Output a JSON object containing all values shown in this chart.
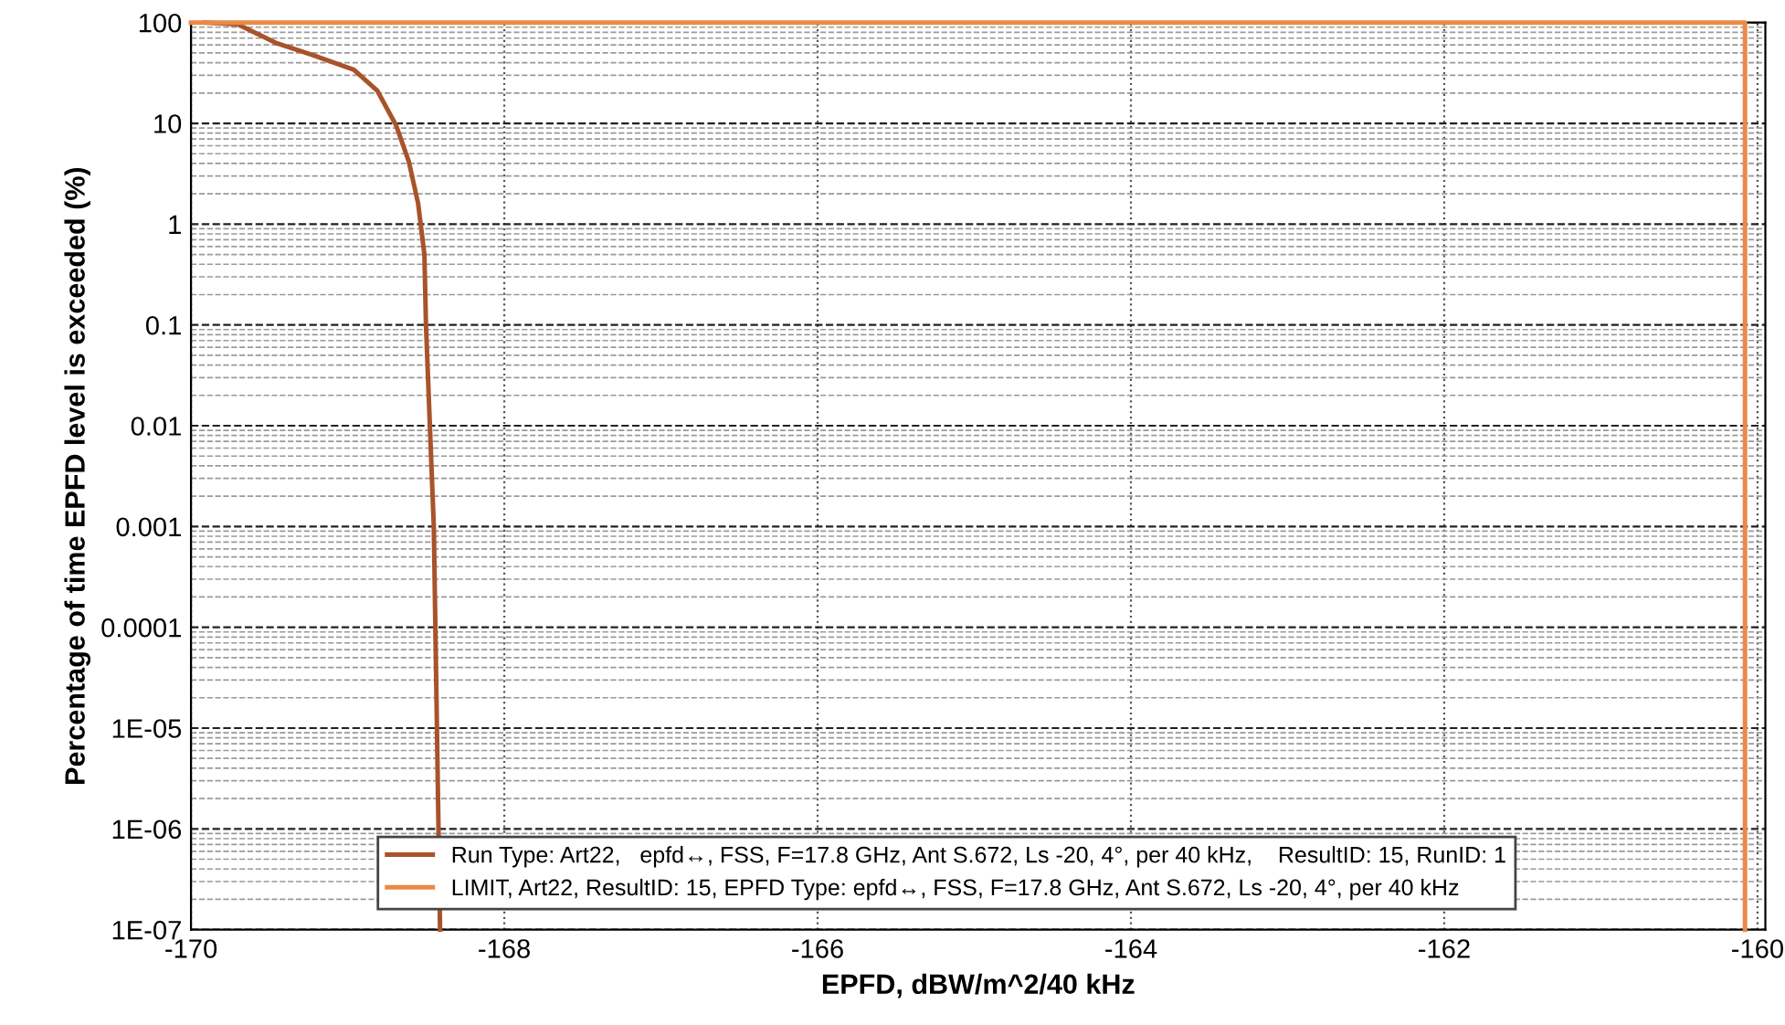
{
  "chart_data": {
    "type": "line",
    "xlabel": "EPFD, dBW/m^2/40 kHz",
    "ylabel": "Percentage of time EPFD level is exceeded (%)",
    "log": "y",
    "grid": true,
    "legend": "bottom",
    "marker": "none",
    "line_style": "solid",
    "xlim": [
      -170,
      -159.95
    ],
    "xticks": [
      -170,
      -168,
      -166,
      -164,
      -162,
      -160
    ],
    "ylim": [
      1e-07,
      100
    ],
    "yticks": [
      100,
      10,
      1,
      0.1,
      0.01,
      0.001,
      0.0001,
      {
        "value": 1e-05,
        "label": "1E-05"
      },
      {
        "value": 1e-06,
        "label": "1E-06"
      },
      {
        "value": 1e-07,
        "label": "1E-07"
      }
    ],
    "series": [
      {
        "name": "Run Type: Art22,   epfd↔, FSS, F=17.8 GHz, Ant S.672, Ls -20, 4°, per 40 kHz,    ResultID: 15, RunID: 1",
        "color": "#a9532b",
        "x": [
          -169.91,
          -169.7,
          -169.46,
          -169.23,
          -168.96,
          -168.81,
          -168.69,
          -168.61,
          -168.55,
          -168.51,
          -168.5,
          -168.45,
          -168.42,
          -168.41
        ],
        "values": [
          100,
          96,
          63,
          48,
          34,
          21,
          9.5,
          4.2,
          1.6,
          0.5,
          0.1,
          0.001,
          1e-06,
          1e-07
        ]
      },
      {
        "name": "LIMIT, Art22, ResultID: 15, EPFD Type: epfd↔, FSS, F=17.8 GHz, Ant S.672, Ls -20, 4°, per 40 kHz",
        "color": "#ea8a45",
        "x": [
          -170,
          -165,
          -160.08,
          -160.08,
          -160.08
        ],
        "values": [
          100,
          100,
          100,
          0.001,
          1e-07
        ]
      }
    ]
  }
}
